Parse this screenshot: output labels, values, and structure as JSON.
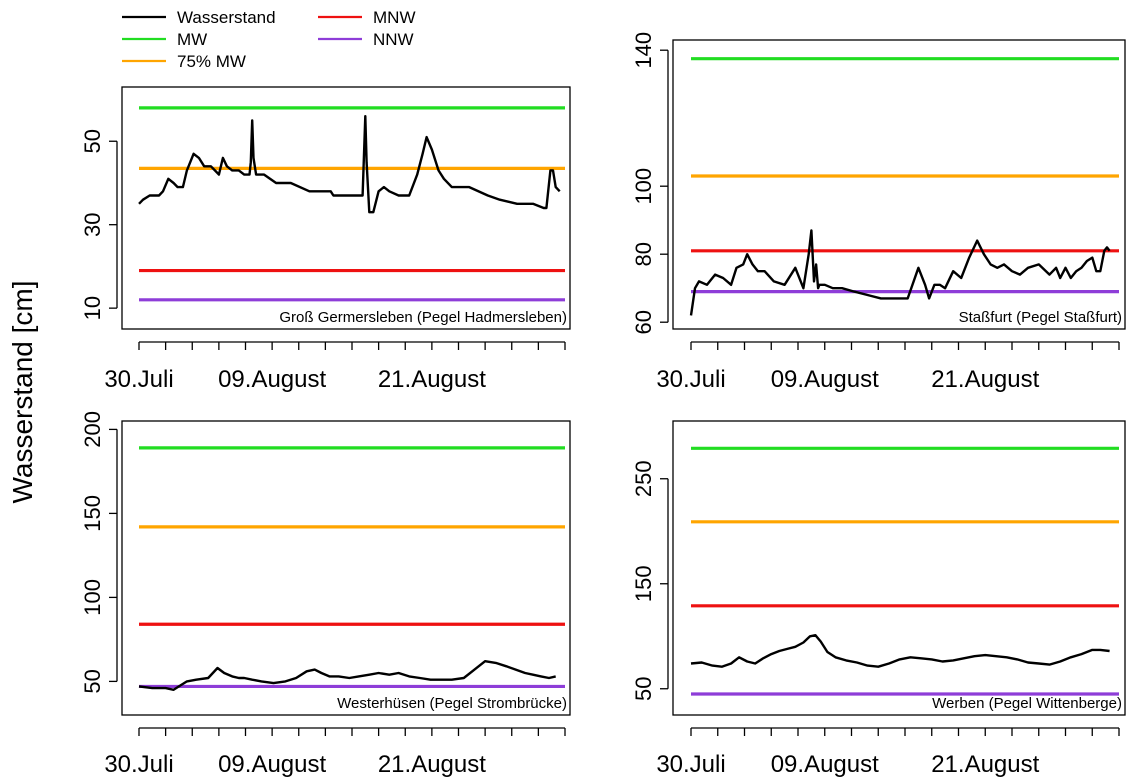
{
  "figure": {
    "ylabel": "Wasserstand [cm]",
    "legend": {
      "placement": "top-left",
      "entries": [
        {
          "label": "Wasserstand",
          "color": "#000000"
        },
        {
          "label": "MW",
          "color": "#22dd22"
        },
        {
          "label": "75% MW",
          "color": "#ffa500"
        },
        {
          "label": "MNW",
          "color": "#ee1111"
        },
        {
          "label": "NNW",
          "color": "#8e3dd8"
        }
      ]
    }
  },
  "chart_data": [
    {
      "type": "line",
      "title": "Groß Germersleben (Pegel Hadmersleben)",
      "x_tick_labels": [
        "30.Juli",
        "09.August",
        "21.August"
      ],
      "x_label_days": [
        0,
        10,
        22
      ],
      "x_range_days": [
        0,
        32
      ],
      "ylim": [
        5,
        63
      ],
      "y_ticks": [
        10,
        30,
        50
      ],
      "reference_lines": [
        {
          "name": "MW",
          "value": 58,
          "color": "#22dd22"
        },
        {
          "name": "75% MW",
          "value": 43.5,
          "color": "#ffa500"
        },
        {
          "name": "MNW",
          "value": 19,
          "color": "#ee1111"
        },
        {
          "name": "NNW",
          "value": 12,
          "color": "#8e3dd8"
        }
      ],
      "series": [
        {
          "name": "Wasserstand",
          "color": "#000000",
          "x": [
            0,
            0.3,
            0.8,
            1.5,
            1.8,
            2.2,
            2.6,
            2.9,
            3.3,
            3.6,
            4.1,
            4.5,
            4.9,
            5.4,
            5.7,
            6.0,
            6.3,
            6.6,
            7.0,
            7.5,
            7.9,
            8.3,
            8.4,
            8.5,
            8.6,
            8.8,
            9.4,
            10.3,
            11.4,
            12.8,
            14.2,
            14.4,
            14.6,
            15.4,
            16.2,
            16.8,
            17.0,
            17.1,
            17.3,
            17.6,
            18.0,
            18.4,
            18.8,
            19.5,
            20.3,
            20.9,
            21.3,
            21.6,
            22.0,
            22.5,
            22.9,
            23.5,
            24.8,
            26.2,
            27.1,
            28.4,
            29.6,
            30.4,
            30.6,
            30.9,
            31.1,
            31.3,
            31.6
          ],
          "y": [
            35,
            36,
            37,
            37,
            38,
            41,
            40,
            39,
            39,
            43,
            47,
            46,
            44,
            44,
            43,
            42,
            46,
            44,
            43,
            43,
            42,
            42,
            45,
            55,
            46,
            42,
            42,
            40,
            40,
            38,
            38,
            38,
            37,
            37,
            37,
            37,
            56,
            45,
            33,
            33,
            38,
            39,
            38,
            37,
            37,
            42,
            47,
            51,
            48,
            43,
            41,
            39,
            39,
            37,
            36,
            35,
            35,
            34,
            34,
            43,
            43,
            39,
            38
          ]
        }
      ]
    },
    {
      "type": "line",
      "title": "Staßfurt (Pegel Staßfurt)",
      "x_tick_labels": [
        "30.Juli",
        "09.August",
        "21.August"
      ],
      "x_label_days": [
        0,
        10,
        22
      ],
      "x_range_days": [
        0,
        32
      ],
      "ylim": [
        58,
        143
      ],
      "y_ticks": [
        60,
        80,
        100,
        140
      ],
      "reference_lines": [
        {
          "name": "MW",
          "value": 137.5,
          "color": "#22dd22"
        },
        {
          "name": "75% MW",
          "value": 103,
          "color": "#ffa500"
        },
        {
          "name": "MNW",
          "value": 81,
          "color": "#ee1111"
        },
        {
          "name": "NNW",
          "value": 69,
          "color": "#8e3dd8"
        }
      ],
      "series": [
        {
          "name": "Wasserstand",
          "color": "#000000",
          "x": [
            0,
            0.3,
            0.6,
            1.2,
            1.8,
            2.4,
            3.0,
            3.4,
            3.9,
            4.2,
            4.6,
            5.0,
            5.5,
            6.2,
            7.0,
            7.8,
            8.4,
            8.8,
            9.0,
            9.2,
            9.35,
            9.5,
            9.6,
            9.75,
            10.0,
            10.6,
            11.3,
            12.2,
            13.2,
            14.2,
            15.2,
            16.2,
            17.0,
            17.5,
            17.8,
            18.2,
            18.6,
            19.0,
            19.6,
            20.2,
            20.8,
            21.4,
            21.9,
            22.4,
            22.9,
            23.4,
            24.0,
            24.6,
            25.2,
            26.0,
            26.8,
            27.3,
            27.6,
            28.0,
            28.4,
            28.8,
            29.2,
            29.6,
            30.0,
            30.3,
            30.6,
            30.9,
            31.1,
            31.3
          ],
          "y": [
            62,
            70,
            72,
            71,
            74,
            73,
            71,
            76,
            77,
            80,
            77,
            75,
            75,
            72,
            71,
            76,
            70,
            80,
            87,
            72,
            77,
            70,
            71,
            71,
            71,
            70,
            70,
            69,
            68,
            67,
            67,
            67,
            76,
            71,
            67,
            71,
            71,
            70,
            75,
            73,
            79,
            84,
            80,
            77,
            76,
            77,
            75,
            74,
            76,
            77,
            74,
            76,
            73,
            76,
            73,
            75,
            76,
            78,
            79,
            75,
            75,
            81,
            82,
            81
          ]
        }
      ]
    },
    {
      "type": "line",
      "title": "Westerhüsen (Pegel Strombrücke)",
      "x_tick_labels": [
        "30.Juli",
        "09.August",
        "21.August"
      ],
      "x_label_days": [
        0,
        10,
        22
      ],
      "x_range_days": [
        0,
        32
      ],
      "ylim": [
        30,
        205
      ],
      "y_ticks": [
        50,
        100,
        150,
        200
      ],
      "reference_lines": [
        {
          "name": "MW",
          "value": 189,
          "color": "#22dd22"
        },
        {
          "name": "75% MW",
          "value": 142,
          "color": "#ffa500"
        },
        {
          "name": "MNW",
          "value": 84,
          "color": "#ee1111"
        },
        {
          "name": "NNW",
          "value": 47,
          "color": "#8e3dd8"
        }
      ],
      "series": [
        {
          "name": "Wasserstand",
          "color": "#000000",
          "x": [
            0,
            1.0,
            2.0,
            2.6,
            3.0,
            3.6,
            4.3,
            5.2,
            5.9,
            6.4,
            7.0,
            7.5,
            7.9,
            8.5,
            9.2,
            10.1,
            11.0,
            11.8,
            12.6,
            13.2,
            13.7,
            14.3,
            15.0,
            15.8,
            16.5,
            17.3,
            18.0,
            18.8,
            19.5,
            20.3,
            21.1,
            21.9,
            22.7,
            23.5,
            24.4,
            25.2,
            26.0,
            26.8,
            27.6,
            28.3,
            29.0,
            29.6,
            30.2,
            30.8,
            31.3
          ],
          "y": [
            47,
            46,
            46,
            45,
            47,
            50,
            51,
            52,
            58,
            55,
            53,
            52,
            52,
            51,
            50,
            49,
            50,
            52,
            56,
            57,
            55,
            53,
            53,
            52,
            53,
            54,
            55,
            54,
            55,
            53,
            52,
            51,
            51,
            51,
            52,
            57,
            62,
            61,
            59,
            57,
            55,
            54,
            53,
            52,
            53
          ]
        }
      ]
    },
    {
      "type": "line",
      "title": "Werben (Pegel Wittenberge)",
      "x_tick_labels": [
        "30.Juli",
        "09.August",
        "21.August"
      ],
      "x_label_days": [
        0,
        10,
        22
      ],
      "x_range_days": [
        0,
        32
      ],
      "ylim": [
        25,
        305
      ],
      "y_ticks": [
        50,
        150,
        250
      ],
      "reference_lines": [
        {
          "name": "MW",
          "value": 279,
          "color": "#22dd22"
        },
        {
          "name": "75% MW",
          "value": 209,
          "color": "#ffa500"
        },
        {
          "name": "MNW",
          "value": 129,
          "color": "#ee1111"
        },
        {
          "name": "NNW",
          "value": 45,
          "color": "#8e3dd8"
        }
      ],
      "series": [
        {
          "name": "Wasserstand",
          "color": "#000000",
          "x": [
            0,
            0.8,
            1.6,
            2.3,
            3.0,
            3.6,
            4.2,
            4.8,
            5.4,
            6.0,
            6.6,
            7.2,
            7.8,
            8.4,
            8.9,
            9.3,
            9.7,
            10.2,
            10.8,
            11.6,
            12.4,
            13.2,
            14.0,
            14.8,
            15.6,
            16.4,
            17.2,
            18.0,
            18.8,
            19.6,
            20.4,
            21.2,
            22.0,
            22.8,
            23.6,
            24.4,
            25.2,
            26.0,
            26.8,
            27.6,
            28.4,
            29.2,
            30.0,
            30.6,
            31.3
          ],
          "y": [
            74,
            75,
            72,
            71,
            74,
            80,
            76,
            74,
            79,
            83,
            86,
            88,
            90,
            94,
            100,
            101,
            95,
            85,
            80,
            77,
            75,
            72,
            71,
            74,
            78,
            80,
            79,
            78,
            76,
            77,
            79,
            81,
            82,
            81,
            80,
            78,
            75,
            74,
            73,
            76,
            80,
            83,
            87,
            87,
            86
          ]
        }
      ]
    }
  ]
}
